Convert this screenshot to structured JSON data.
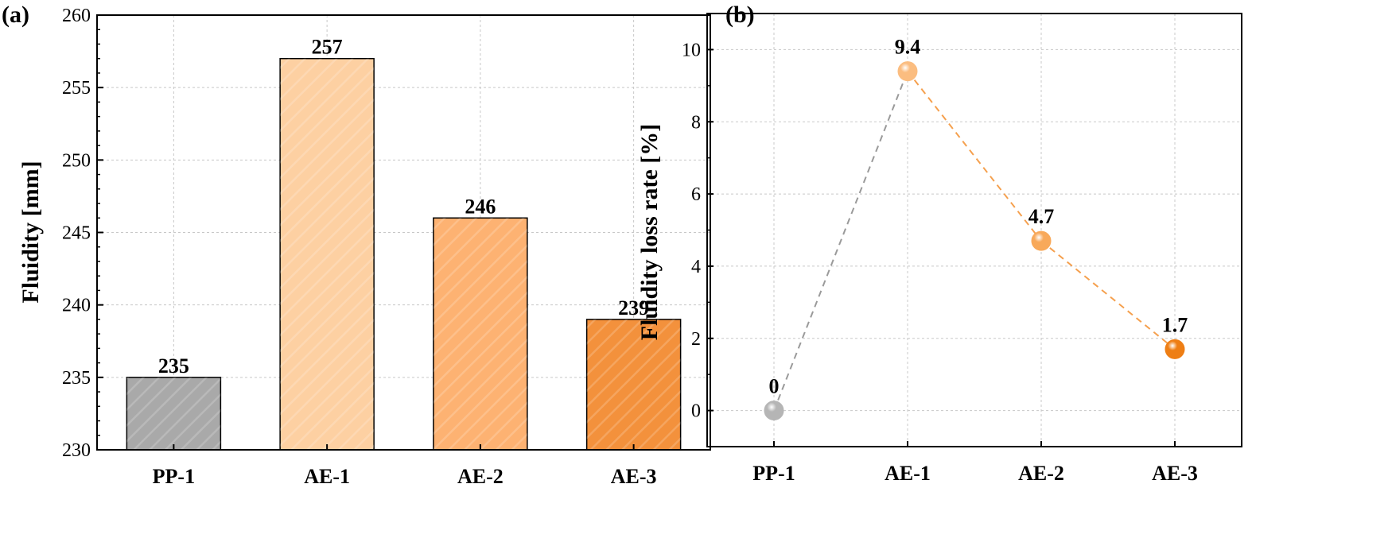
{
  "chart_data": [
    {
      "panel_label": "(a)",
      "type": "bar",
      "categories": [
        "PP-1",
        "AE-1",
        "AE-2",
        "AE-3"
      ],
      "values": [
        235,
        257,
        246,
        239
      ],
      "value_labels": [
        "235",
        "257",
        "246",
        "239"
      ],
      "colors": [
        "#a9a9a9",
        "#fdd0a2",
        "#fdb272",
        "#f3913c"
      ],
      "ylabel": "Fluidity [mm]",
      "xlabel": "",
      "ylim": [
        230,
        260
      ],
      "yticks": [
        230,
        235,
        240,
        245,
        250,
        255,
        260
      ],
      "grid": true
    },
    {
      "panel_label": "(b)",
      "type": "line",
      "categories": [
        "PP-1",
        "AE-1",
        "AE-2",
        "AE-3"
      ],
      "values": [
        0,
        9.4,
        4.7,
        1.7
      ],
      "value_labels": [
        "0",
        "9.4",
        "4.7",
        "1.7"
      ],
      "colors": [
        "#b5b5b5",
        "#fbbd80",
        "#f8a95a",
        "#ee7e14"
      ],
      "segment_colors": [
        "#9a9a9a",
        "#f5a04e",
        "#f5a04e"
      ],
      "ylabel": "Fluidity loss rate [%]",
      "xlabel": "",
      "ylim": [
        -1,
        11
      ],
      "yticks": [
        0,
        2,
        4,
        6,
        8,
        10
      ],
      "grid": true
    }
  ]
}
